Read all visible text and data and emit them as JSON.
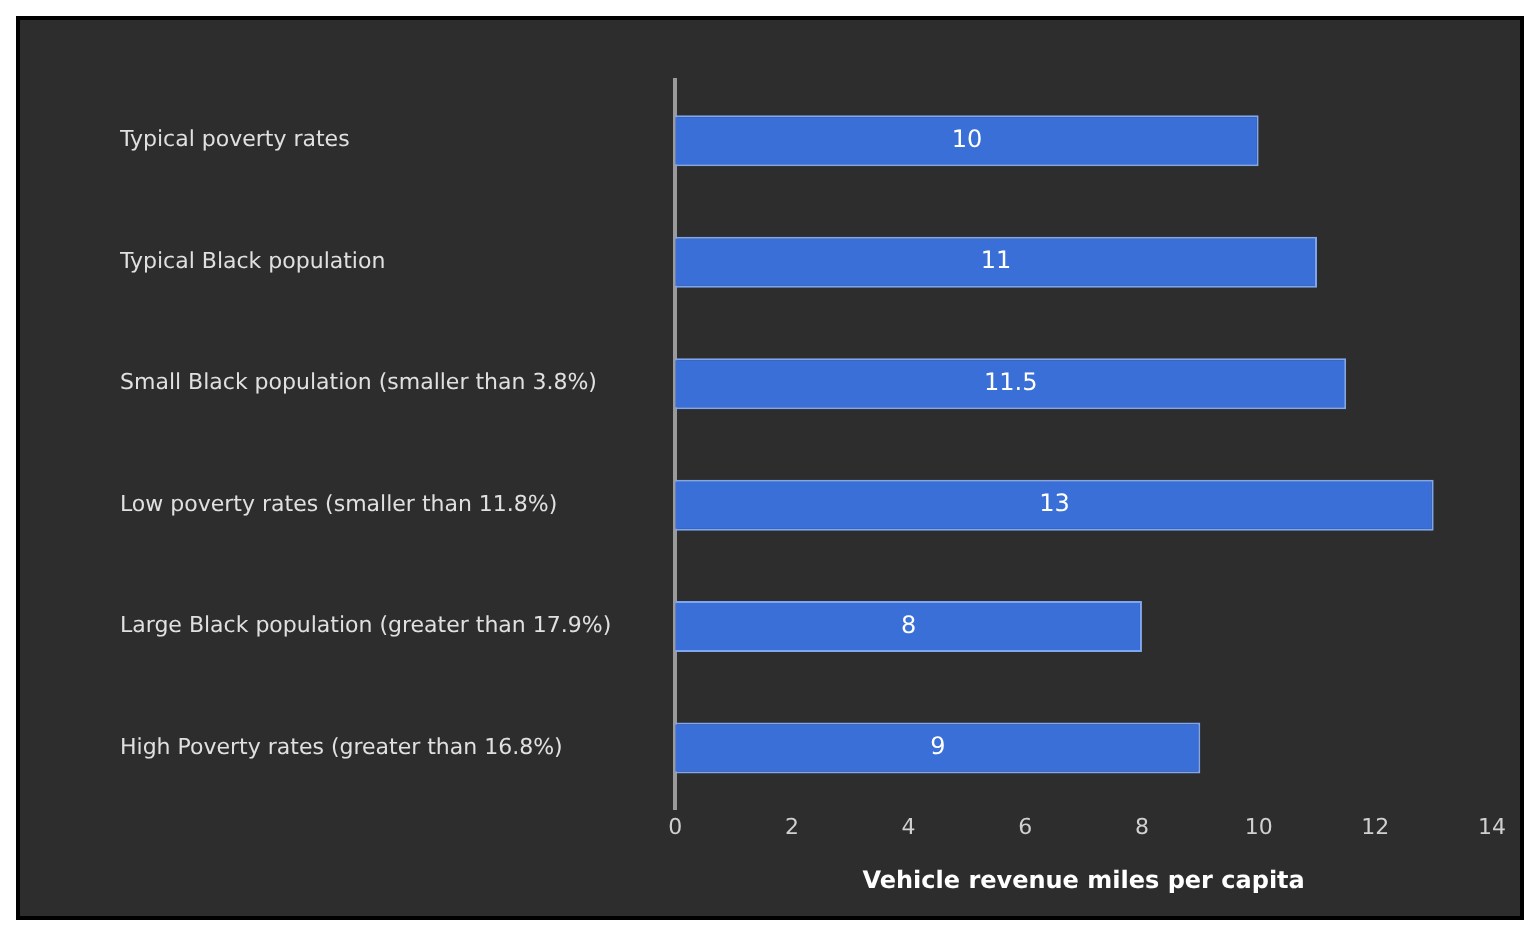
{
  "chart_data": {
    "type": "bar",
    "orientation": "horizontal",
    "xlabel": "Vehicle revenue miles per capita",
    "categories": [
      "Typical poverty rates",
      "Typical Black population",
      "Small Black population (smaller than 3.8%)",
      "Low poverty rates (smaller than 11.8%)",
      "Large Black population (greater than 17.9%)",
      "High Poverty rates (greater than 16.8%)"
    ],
    "values": [
      10,
      11,
      11.5,
      13,
      8,
      9
    ],
    "color": "#3a6fd8",
    "data_labels": true,
    "xlim": [
      0,
      14
    ],
    "xticks": [
      0,
      2,
      4,
      6,
      8,
      10,
      12,
      14
    ],
    "grid": false,
    "legend": false
  }
}
